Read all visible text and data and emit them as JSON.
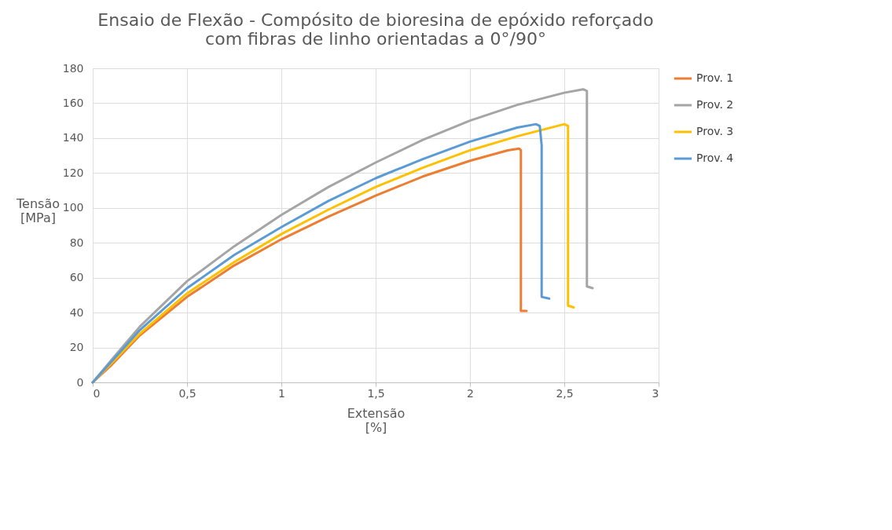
{
  "chart_data": {
    "type": "line",
    "title": "Ensaio de Flexão - Compósito de bioresina de epóxido reforçado com fibras de linho orientadas a 0°/90°",
    "xlabel": "Extensão [%]",
    "ylabel": "Tensão [MPa]",
    "xlim": [
      0,
      3
    ],
    "xticks": [
      0,
      {
        "value": 0.5,
        "label": "0,5"
      },
      1,
      {
        "value": 1.5,
        "label": "1,5"
      },
      2,
      {
        "value": 2.5,
        "label": "2,5"
      },
      3
    ],
    "ylim": [
      0,
      180
    ],
    "yticks": [
      0,
      20,
      40,
      60,
      80,
      100,
      120,
      140,
      160,
      180
    ],
    "grid": true,
    "legend": "right",
    "marker": "none",
    "line_style": "solid",
    "series": [
      {
        "name": "Prov. 1",
        "color": "#ed7d31",
        "x": [
          0,
          0.1,
          0.25,
          0.5,
          0.75,
          1,
          1.25,
          1.5,
          1.75,
          2,
          2.2,
          2.26,
          2.27,
          2.27,
          2.3
        ],
        "values": [
          0,
          10,
          27,
          49,
          67,
          82,
          95,
          107,
          118,
          127,
          133,
          134,
          133,
          41,
          41
        ]
      },
      {
        "name": "Prov. 2",
        "color": "#a5a5a5",
        "x": [
          0,
          0.1,
          0.25,
          0.5,
          0.75,
          1,
          1.25,
          1.5,
          1.75,
          2,
          2.25,
          2.5,
          2.6,
          2.62,
          2.62,
          2.65
        ],
        "values": [
          0,
          13,
          32,
          58,
          78,
          96,
          112,
          126,
          139,
          150,
          159,
          166,
          168,
          167,
          55,
          54
        ]
      },
      {
        "name": "Prov. 3",
        "color": "#ffc000",
        "x": [
          0,
          0.1,
          0.25,
          0.5,
          0.75,
          1,
          1.25,
          1.5,
          1.75,
          2,
          2.25,
          2.5,
          2.52,
          2.52,
          2.55
        ],
        "values": [
          0,
          11,
          28,
          51,
          69,
          85,
          99,
          112,
          123,
          133,
          141,
          148,
          147,
          44,
          43
        ]
      },
      {
        "name": "Prov. 4",
        "color": "#5b9bd5",
        "x": [
          0,
          0.1,
          0.25,
          0.5,
          0.75,
          1,
          1.25,
          1.5,
          1.75,
          2,
          2.25,
          2.35,
          2.37,
          2.38,
          2.38,
          2.42
        ],
        "values": [
          0,
          12,
          30,
          54,
          73,
          89,
          104,
          117,
          128,
          138,
          146,
          148,
          147,
          136,
          49,
          48
        ]
      }
    ]
  }
}
